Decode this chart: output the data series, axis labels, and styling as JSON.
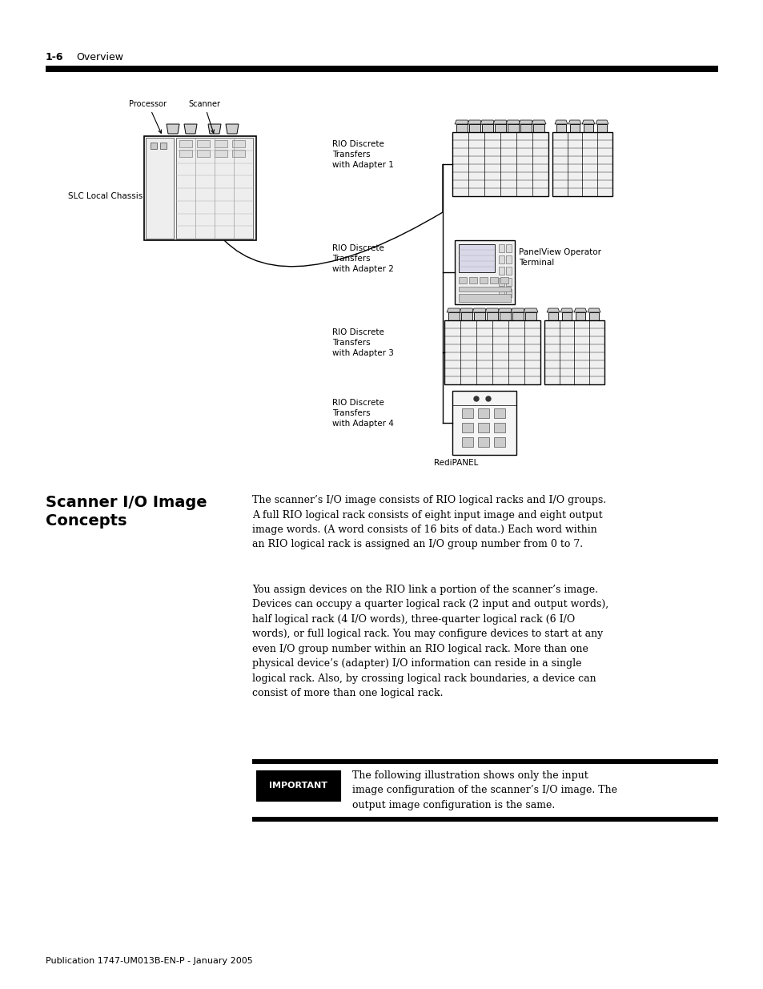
{
  "page_header_bold": "1-6",
  "page_header_text": "Overview",
  "bg_color": "#ffffff",
  "text_color": "#000000",
  "section_title": "Scanner I/O Image\nConcepts",
  "paragraph1": "The scanner’s I/O image consists of RIO logical racks and I/O groups.\nA full RIO logical rack consists of eight input image and eight output\nimage words. (A word consists of 16 bits of data.) Each word within\nan RIO logical rack is assigned an I/O group number from 0 to 7.",
  "paragraph2": "You assign devices on the RIO link a portion of the scanner’s image.\nDevices can occupy a quarter logical rack (2 input and output words),\nhalf logical rack (4 I/O words), three-quarter logical rack (6 I/O\nwords), or full logical rack. You may configure devices to start at any\neven I/O group number within an RIO logical rack. More than one\nphysical device’s (adapter) I/O information can reside in a single\nlogical rack. Also, by crossing logical rack boundaries, a device can\nconsist of more than one logical rack.",
  "important_label": "IMPORTANT",
  "important_text": "The following illustration shows only the input\nimage configuration of the scanner’s I/O image. The\noutput image configuration is the same.",
  "footer_text": "Publication 1747-UM013B-EN-P - January 2005",
  "diagram_label_processor": "Processor",
  "diagram_label_scanner": "Scanner",
  "diagram_label_slc": "SLC Local Chassis",
  "diagram_label_rio1": "RIO Discrete\nTransfers\nwith Adapter 1",
  "diagram_label_rio2": "RIO Discrete\nTransfers\nwith Adapter 2",
  "diagram_label_rio3": "RIO Discrete\nTransfers\nwith Adapter 3",
  "diagram_label_rio4": "RIO Discrete\nTransfers\nwith Adapter 4",
  "diagram_label_panelview": "PanelView Operator\nTerminal",
  "diagram_label_redipanel": "RediPANEL"
}
